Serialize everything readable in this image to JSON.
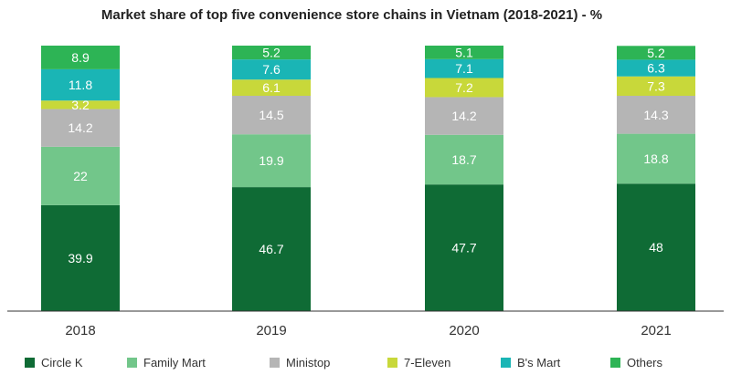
{
  "chart_data": {
    "type": "bar",
    "stacked": true,
    "title": "Market share of top five convenience store chains in Vietnam (2018-2021) - %",
    "categories": [
      "2018",
      "2019",
      "2020",
      "2021"
    ],
    "series": [
      {
        "name": "Circle K",
        "color": "#0f6b35",
        "values": [
          39.9,
          46.7,
          47.7,
          48
        ]
      },
      {
        "name": "Family Mart",
        "color": "#72c68a",
        "values": [
          22,
          19.9,
          18.7,
          18.8
        ]
      },
      {
        "name": "Ministop",
        "color": "#b5b5b5",
        "values": [
          14.2,
          14.5,
          14.2,
          14.3
        ]
      },
      {
        "name": "7-Eleven",
        "color": "#c8d83a",
        "values": [
          3.2,
          6.1,
          7.2,
          7.3
        ]
      },
      {
        "name": "B's Mart",
        "color": "#1ab5b5",
        "values": [
          11.8,
          7.6,
          7.1,
          6.3
        ]
      },
      {
        "name": "Others",
        "color": "#2db455",
        "values": [
          8.9,
          5.2,
          5.1,
          5.2
        ]
      }
    ],
    "ylim": [
      0,
      100
    ],
    "grid": false,
    "legend_position": "bottom"
  }
}
